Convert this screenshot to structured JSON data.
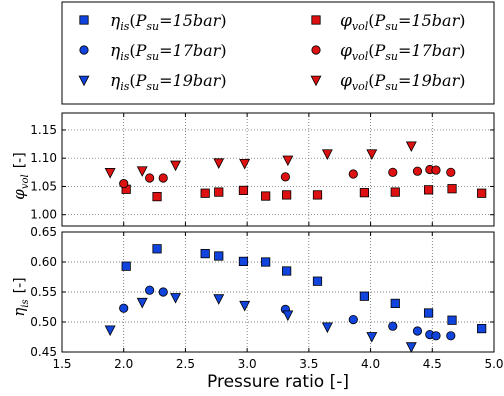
{
  "chart_data": [
    {
      "type": "scatter",
      "panel": "top",
      "ylabel": "φ_vol  [-]",
      "ylabel_symbol": "φ",
      "ylabel_sub": "vol",
      "ylabel_unit": "[-]",
      "xlim": [
        1.5,
        5.0
      ],
      "ylim": [
        0.98,
        1.18
      ],
      "yticks": [
        "1.00",
        "1.05",
        "1.10",
        "1.15"
      ],
      "grid": true,
      "series": [
        {
          "name": "φvol(Psu=15bar)",
          "marker": "square",
          "color": "#dd1111",
          "x": [
            2.02,
            2.27,
            2.66,
            2.77,
            2.97,
            3.15,
            3.32,
            3.57,
            3.95,
            4.2,
            4.47,
            4.66,
            4.9
          ],
          "y": [
            1.045,
            1.032,
            1.038,
            1.04,
            1.043,
            1.033,
            1.035,
            1.035,
            1.039,
            1.04,
            1.044,
            1.046,
            1.038
          ]
        },
        {
          "name": "φvol(Psu=17bar)",
          "marker": "circle",
          "color": "#dd1111",
          "x": [
            2.0,
            2.21,
            2.32,
            3.31,
            3.86,
            4.18,
            4.38,
            4.48,
            4.53,
            4.65
          ],
          "y": [
            1.055,
            1.065,
            1.065,
            1.067,
            1.072,
            1.075,
            1.077,
            1.08,
            1.079,
            1.075
          ]
        },
        {
          "name": "φvol(Psu=19bar)",
          "marker": "triangle-down",
          "color": "#dd1111",
          "x": [
            1.89,
            2.15,
            2.42,
            2.77,
            2.98,
            3.33,
            3.65,
            4.01,
            4.33
          ],
          "y": [
            1.075,
            1.078,
            1.088,
            1.092,
            1.091,
            1.097,
            1.108,
            1.108,
            1.122
          ]
        }
      ]
    },
    {
      "type": "scatter",
      "panel": "bottom",
      "xlabel": "Pressure ratio  [-]",
      "ylabel": "η_is  [-]",
      "ylabel_symbol": "η",
      "ylabel_sub": "is",
      "ylabel_unit": "[-]",
      "xlim": [
        1.5,
        5.0
      ],
      "ylim": [
        0.45,
        0.65
      ],
      "xticks": [
        "1.5",
        "2.0",
        "2.5",
        "3.0",
        "3.5",
        "4.0",
        "4.5",
        "5.0"
      ],
      "yticks": [
        "0.45",
        "0.50",
        "0.55",
        "0.60",
        "0.65"
      ],
      "grid": true,
      "series": [
        {
          "name": "ηis(Psu=15bar)",
          "marker": "square",
          "color": "#1144dd",
          "x": [
            2.02,
            2.27,
            2.66,
            2.77,
            2.97,
            3.15,
            3.32,
            3.57,
            3.95,
            4.2,
            4.47,
            4.66,
            4.9
          ],
          "y": [
            0.593,
            0.622,
            0.614,
            0.61,
            0.601,
            0.6,
            0.585,
            0.568,
            0.543,
            0.531,
            0.515,
            0.503,
            0.489
          ]
        },
        {
          "name": "ηis(Psu=17bar)",
          "marker": "circle",
          "color": "#1144dd",
          "x": [
            2.0,
            2.21,
            2.32,
            3.31,
            3.86,
            4.18,
            4.38,
            4.48,
            4.53,
            4.65
          ],
          "y": [
            0.523,
            0.553,
            0.55,
            0.521,
            0.504,
            0.493,
            0.485,
            0.479,
            0.477,
            0.477
          ]
        },
        {
          "name": "ηis(Psu=19bar)",
          "marker": "triangle-down",
          "color": "#1144dd",
          "x": [
            1.89,
            2.15,
            2.42,
            2.77,
            2.98,
            3.33,
            3.65,
            4.01,
            4.33
          ],
          "y": [
            0.487,
            0.533,
            0.541,
            0.539,
            0.528,
            0.512,
            0.492,
            0.476,
            0.459
          ]
        }
      ]
    }
  ],
  "legend": {
    "placement": "top",
    "entries": [
      {
        "base": "η",
        "sub": "is",
        "psu": "P",
        "psusub": "su",
        "value": "=15bar",
        "marker": "square",
        "color": "#1144dd"
      },
      {
        "base": "φ",
        "sub": "vol",
        "psu": "P",
        "psusub": "su",
        "value": "=15bar",
        "marker": "square",
        "color": "#dd1111"
      },
      {
        "base": "η",
        "sub": "is",
        "psu": "P",
        "psusub": "su",
        "value": "=17bar",
        "marker": "circle",
        "color": "#1144dd"
      },
      {
        "base": "φ",
        "sub": "vol",
        "psu": "P",
        "psusub": "su",
        "value": "=17bar",
        "marker": "circle",
        "color": "#dd1111"
      },
      {
        "base": "η",
        "sub": "is",
        "psu": "P",
        "psusub": "su",
        "value": "=19bar",
        "marker": "triangle-down",
        "color": "#1144dd"
      },
      {
        "base": "φ",
        "sub": "vol",
        "psu": "P",
        "psusub": "su",
        "value": "=19bar",
        "marker": "triangle-down",
        "color": "#dd1111"
      }
    ]
  }
}
